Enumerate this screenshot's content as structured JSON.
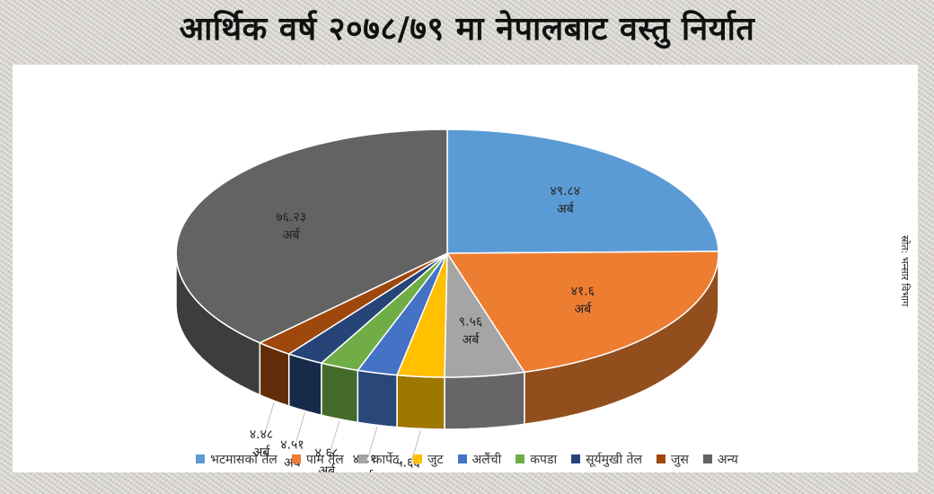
{
  "header": {
    "title": "आर्थिक वर्ष २०७८/७९ मा नेपालबाट वस्तु निर्यात"
  },
  "source_note": "स्रोत: भन्सार विभाग",
  "chart_data": {
    "type": "pie",
    "title": "आर्थिक वर्ष २०७८/७९ मा नेपालबाट वस्तु निर्यात",
    "unit_label": "अर्ब",
    "legend_position": "bottom",
    "slices": [
      {
        "label": "भटमासको तेल",
        "value": 49.84,
        "value_text": "४९.८४",
        "color": "#5b9bd5"
      },
      {
        "label": "पाम तेल",
        "value": 41.6,
        "value_text": "४१.६",
        "color": "#ed7d31"
      },
      {
        "label": "कार्पेट",
        "value": 9.56,
        "value_text": "९.५६",
        "color": "#a5a5a5"
      },
      {
        "label": "जुट",
        "value": 5.66,
        "value_text": "५.६६",
        "color": "#ffc000"
      },
      {
        "label": "अलैंची",
        "value": 4.81,
        "value_text": "४.८१",
        "color": "#4472c4"
      },
      {
        "label": "कपडा",
        "value": 4.68,
        "value_text": "४.६८",
        "color": "#70ad47"
      },
      {
        "label": "सूर्यमुखी तेल",
        "value": 4.51,
        "value_text": "४.५१",
        "color": "#264478"
      },
      {
        "label": "जुस",
        "value": 4.48,
        "value_text": "४.४८",
        "color": "#9e480e"
      },
      {
        "label": "अन्य",
        "value": 76.23,
        "value_text": "७६.२३",
        "color": "#636363"
      }
    ]
  }
}
